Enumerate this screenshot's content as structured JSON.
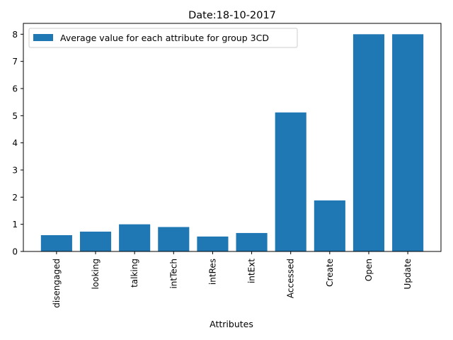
{
  "chart_data": {
    "type": "bar",
    "title": "Date:18-10-2017",
    "xlabel": "Attributes",
    "ylabel": "",
    "categories": [
      "disengaged",
      "looking",
      "talking",
      "intTech",
      "intRes",
      "intExt",
      "Accessed",
      "Create",
      "Open",
      "Update"
    ],
    "series": [
      {
        "name": "Average value for each attribute for group 3CD",
        "values": [
          0.6,
          0.73,
          1.0,
          0.9,
          0.55,
          0.68,
          5.12,
          1.88,
          8.0,
          8.0
        ],
        "color": "#1f77b4"
      }
    ],
    "ylim": [
      0,
      8.4
    ],
    "yticks": [
      0,
      1,
      2,
      3,
      4,
      5,
      6,
      7,
      8
    ],
    "grid": false,
    "legend_position": "upper-left"
  }
}
